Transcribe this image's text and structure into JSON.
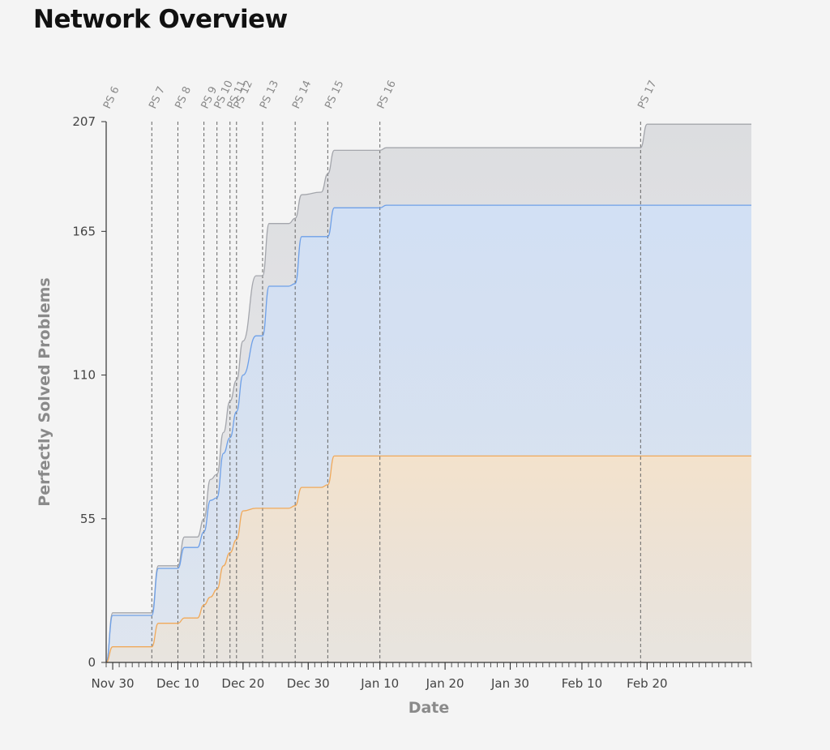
{
  "header": {
    "title": "Network Overview"
  },
  "chart_data": {
    "type": "area",
    "xlabel": "Date",
    "ylabel": "Perfectly Solved Problems",
    "xlim": [
      "2023-11-29",
      "2024-03-07"
    ],
    "ylim": [
      0,
      207
    ],
    "yticks": [
      0,
      55,
      110,
      165,
      207
    ],
    "xticks": [
      {
        "date": "2023-11-30",
        "label": "Nov 30"
      },
      {
        "date": "2023-12-10",
        "label": "Dec 10"
      },
      {
        "date": "2023-12-20",
        "label": "Dec 20"
      },
      {
        "date": "2023-12-30",
        "label": "Dec 30"
      },
      {
        "date": "2024-01-10",
        "label": "Jan 10"
      },
      {
        "date": "2024-01-20",
        "label": "Jan 20"
      },
      {
        "date": "2024-01-30",
        "label": "Jan 30"
      },
      {
        "date": "2024-02-10",
        "label": "Feb 10"
      },
      {
        "date": "2024-02-20",
        "label": "Feb 20"
      }
    ],
    "events": [
      {
        "label": "PS 6",
        "date": "2023-11-29"
      },
      {
        "label": "PS 7",
        "date": "2023-12-06"
      },
      {
        "label": "PS 8",
        "date": "2023-12-10"
      },
      {
        "label": "PS 9",
        "date": "2023-12-14"
      },
      {
        "label": "PS 10",
        "date": "2023-12-16"
      },
      {
        "label": "PS 11",
        "date": "2023-12-18"
      },
      {
        "label": "PS 12",
        "date": "2023-12-19"
      },
      {
        "label": "PS 13",
        "date": "2023-12-23"
      },
      {
        "label": "PS 14",
        "date": "2023-12-28"
      },
      {
        "label": "PS 15",
        "date": "2024-01-02"
      },
      {
        "label": "PS 16",
        "date": "2024-01-10"
      },
      {
        "label": "PS 17",
        "date": "2024-02-19"
      }
    ],
    "series": [
      {
        "color": "#a4a6ac",
        "fill": "#dcdde0",
        "x": [
          "2023-11-29",
          "2023-11-30",
          "2023-12-06",
          "2023-12-07",
          "2023-12-10",
          "2023-12-11",
          "2023-12-13",
          "2023-12-14",
          "2023-12-15",
          "2023-12-16",
          "2023-12-17",
          "2023-12-18",
          "2023-12-19",
          "2023-12-20",
          "2023-12-22",
          "2023-12-23",
          "2023-12-24",
          "2023-12-27",
          "2023-12-28",
          "2023-12-29",
          "2024-01-01",
          "2024-01-02",
          "2024-01-03",
          "2024-01-10",
          "2024-01-11",
          "2024-02-19",
          "2024-02-20",
          "2024-03-07"
        ],
        "y": [
          0,
          19,
          19,
          37,
          37,
          48,
          48,
          55,
          70,
          72,
          88,
          100,
          108,
          123,
          148,
          148,
          168,
          168,
          170,
          179,
          180,
          187,
          196,
          196,
          197,
          197,
          206,
          206
        ]
      },
      {
        "color": "#6ea0e8",
        "fill": "#d2e0f4",
        "x": [
          "2023-11-29",
          "2023-11-30",
          "2023-12-06",
          "2023-12-07",
          "2023-12-10",
          "2023-12-11",
          "2023-12-13",
          "2023-12-14",
          "2023-12-15",
          "2023-12-16",
          "2023-12-17",
          "2023-12-18",
          "2023-12-19",
          "2023-12-20",
          "2023-12-22",
          "2023-12-23",
          "2023-12-24",
          "2023-12-27",
          "2023-12-28",
          "2023-12-29",
          "2024-01-01",
          "2024-01-02",
          "2024-01-03",
          "2024-01-10",
          "2024-01-11",
          "2024-03-07"
        ],
        "y": [
          0,
          18,
          18,
          36,
          36,
          44,
          44,
          50,
          62,
          63,
          80,
          86,
          96,
          110,
          125,
          125,
          144,
          144,
          145,
          163,
          163,
          163,
          174,
          174,
          175,
          175
        ]
      },
      {
        "color": "#f0a95a",
        "fill": "#f3e2cc",
        "x": [
          "2023-11-29",
          "2023-11-30",
          "2023-12-06",
          "2023-12-07",
          "2023-12-10",
          "2023-12-11",
          "2023-12-13",
          "2023-12-14",
          "2023-12-15",
          "2023-12-16",
          "2023-12-17",
          "2023-12-18",
          "2023-12-19",
          "2023-12-20",
          "2023-12-22",
          "2023-12-23",
          "2023-12-24",
          "2023-12-27",
          "2023-12-28",
          "2023-12-29",
          "2024-01-01",
          "2024-01-02",
          "2024-01-03",
          "2024-03-07"
        ],
        "y": [
          0,
          6,
          6,
          15,
          15,
          17,
          17,
          22,
          25,
          28,
          37,
          42,
          47,
          58,
          59,
          59,
          59,
          59,
          60,
          67,
          67,
          68,
          79,
          79
        ]
      }
    ]
  }
}
